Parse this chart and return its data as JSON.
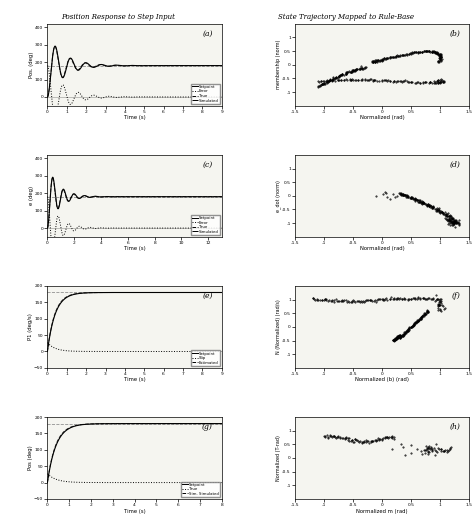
{
  "fig_title_left": "Position Response to Step Input",
  "fig_title_right": "State Trajectory Mapped to Rule-Base",
  "left_plots": [
    {
      "label": "(a)",
      "ylabel": "Pos. (deg)",
      "xlabel": "Time (s)",
      "xlim": [
        0,
        9
      ],
      "ylim": [
        -50,
        420
      ],
      "yticks": [
        0,
        100,
        200,
        300,
        400
      ],
      "setpoint": 180,
      "legend": [
        "Setpoint",
        "Error",
        "True",
        "Simulated"
      ]
    },
    {
      "label": "(c)",
      "ylabel": "e (deg)",
      "xlabel": "Time (s)",
      "xlim": [
        0,
        13
      ],
      "ylim": [
        -50,
        420
      ],
      "yticks": [
        0,
        100,
        200,
        300,
        400
      ],
      "setpoint": 180,
      "legend": [
        "Setpoint",
        "Error",
        "True",
        "Simulated"
      ]
    },
    {
      "label": "(e)",
      "ylabel": "P1 (deg/s)",
      "xlabel": "Time (s)",
      "xlim": [
        0,
        9
      ],
      "ylim": [
        -50,
        200
      ],
      "yticks": [
        -50,
        0,
        50,
        100,
        150,
        200
      ],
      "setpoint": 180,
      "legend": [
        "Setpoint",
        "Slip",
        "Estimated"
      ]
    },
    {
      "label": "(g)",
      "ylabel": "Pos (deg)",
      "xlabel": "Time (s)",
      "xlim": [
        0,
        8
      ],
      "ylim": [
        -50,
        200
      ],
      "yticks": [
        -50,
        0,
        50,
        100,
        150,
        200
      ],
      "setpoint": 180,
      "legend": [
        "Setpoint",
        "True",
        "Sim. Simulated"
      ]
    }
  ],
  "right_plots": [
    {
      "label": "(b)",
      "ylabel": "membership (norm)",
      "xlabel": "Normalized (rad)",
      "xlim": [
        -1.5,
        1.5
      ],
      "ylim": [
        -1.5,
        1.5
      ],
      "yticks": [
        -1,
        -0.5,
        0,
        0.5,
        1
      ],
      "xticks": [
        -1.5,
        -1,
        -0.5,
        0,
        0.5,
        1,
        1.5
      ]
    },
    {
      "label": "(d)",
      "ylabel": "e_dot (norm)",
      "xlabel": "Normalized (rad)",
      "xlim": [
        -1.5,
        1.5
      ],
      "ylim": [
        -1.5,
        1.5
      ],
      "yticks": [
        -1,
        -0.5,
        0,
        0.5,
        1
      ],
      "xticks": [
        -1.5,
        -1,
        -0.5,
        0,
        0.5,
        1,
        1.5
      ]
    },
    {
      "label": "(f)",
      "ylabel": "N (Normalized) (rad/s)",
      "xlabel": "Normalized (b) (rad)",
      "xlim": [
        -1.5,
        1.5
      ],
      "ylim": [
        -1.5,
        1.5
      ],
      "yticks": [
        -1,
        -0.5,
        0,
        0.5,
        1
      ],
      "xticks": [
        -1.5,
        -1,
        -0.5,
        0,
        0.5,
        1,
        1.5
      ]
    },
    {
      "label": "(h)",
      "ylabel": "Normalized (T-rad)",
      "xlabel": "Normalized m (rad)",
      "xlim": [
        -1.5,
        1.5
      ],
      "ylim": [
        -1.5,
        1.5
      ],
      "yticks": [
        -1,
        -0.5,
        0,
        0.5,
        1
      ],
      "xticks": [
        -1.5,
        -1,
        -0.5,
        0,
        0.5,
        1,
        1.5
      ]
    }
  ],
  "bg_color": "#ffffff",
  "plot_bg": "#f5f5f0"
}
